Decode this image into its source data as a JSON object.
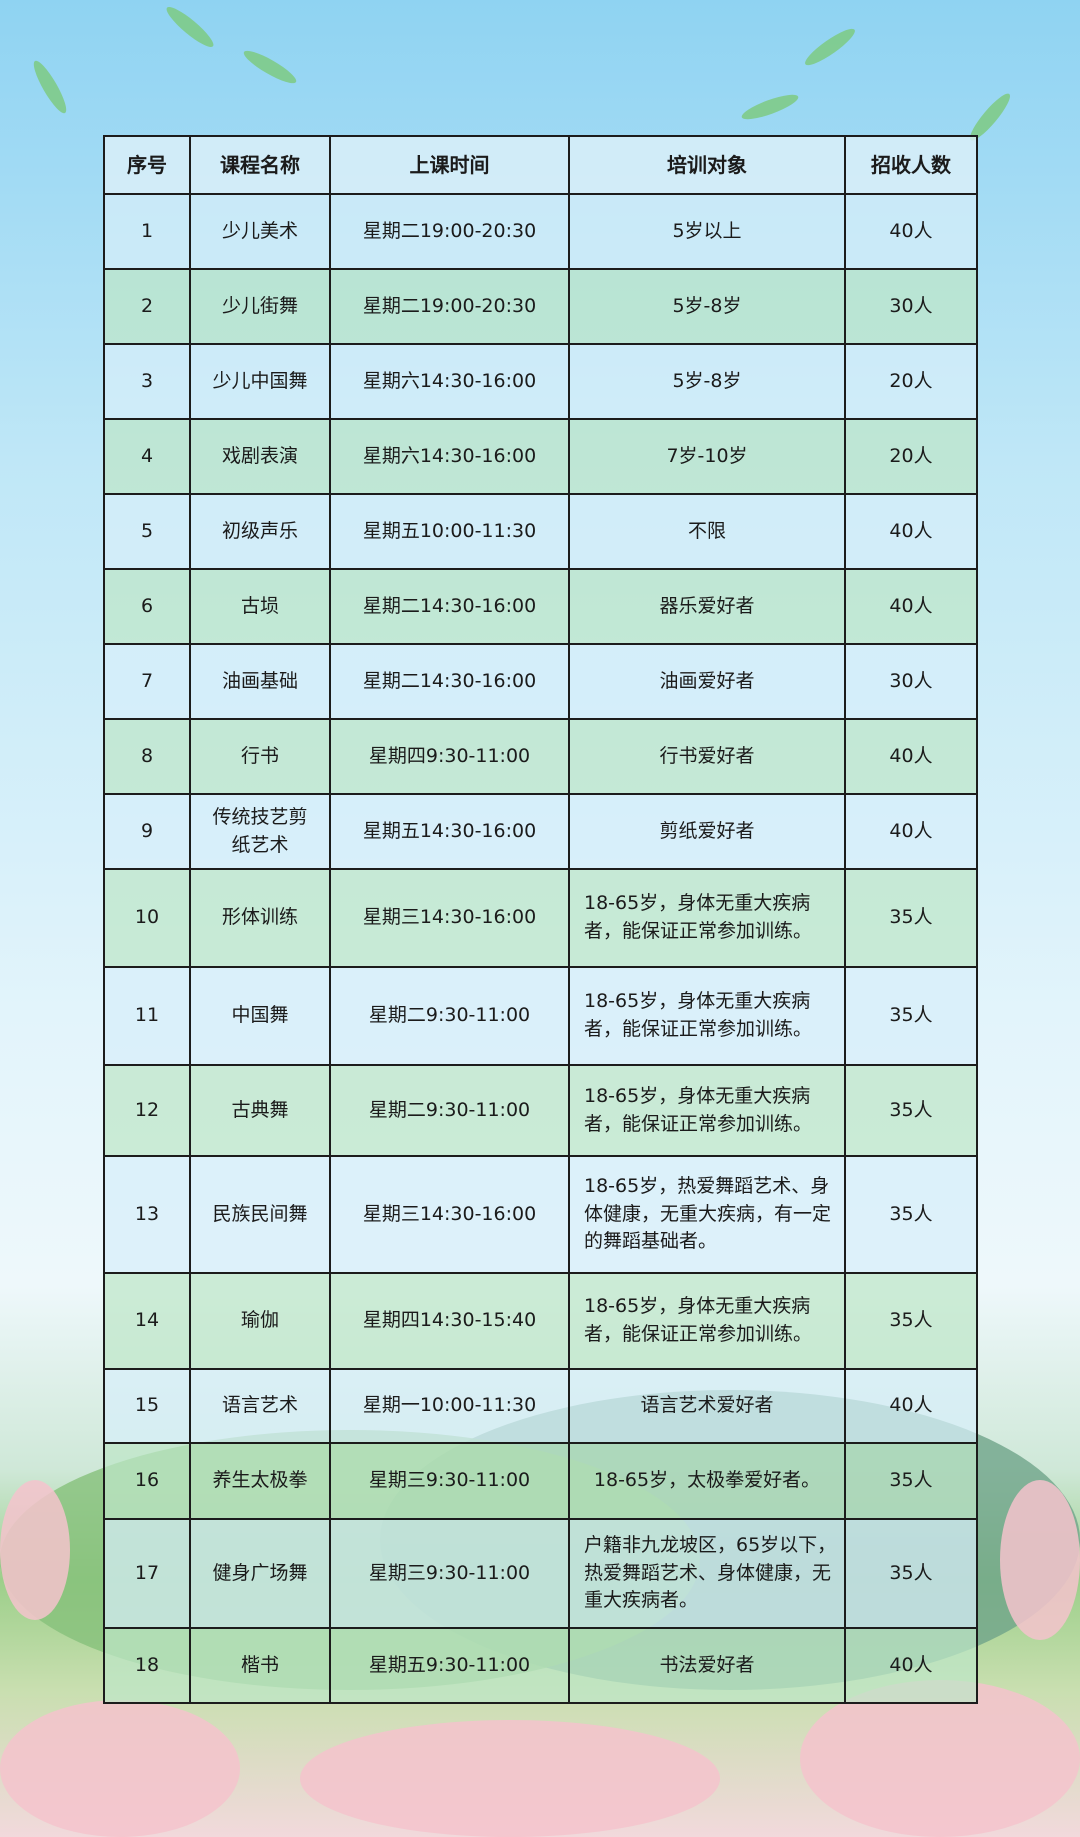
{
  "table": {
    "headers": [
      "序号",
      "课程名称",
      "上课时间",
      "培训对象",
      "招收人数"
    ],
    "rows": [
      {
        "no": "1",
        "name": "少儿美术",
        "time": "星期二19:00-20:30",
        "target": "5岁以上",
        "count": "40人"
      },
      {
        "no": "2",
        "name": "少儿街舞",
        "time": "星期二19:00-20:30",
        "target": "5岁-8岁",
        "count": "30人"
      },
      {
        "no": "3",
        "name": "少儿中国舞",
        "time": "星期六14:30-16:00",
        "target": "5岁-8岁",
        "count": "20人"
      },
      {
        "no": "4",
        "name": "戏剧表演",
        "time": "星期六14:30-16:00",
        "target": "7岁-10岁",
        "count": "20人"
      },
      {
        "no": "5",
        "name": "初级声乐",
        "time": "星期五10:00-11:30",
        "target": "不限",
        "count": "40人"
      },
      {
        "no": "6",
        "name": "古埙",
        "time": "星期二14:30-16:00",
        "target": "器乐爱好者",
        "count": "40人"
      },
      {
        "no": "7",
        "name": "油画基础",
        "time": "星期二14:30-16:00",
        "target": "油画爱好者",
        "count": "30人"
      },
      {
        "no": "8",
        "name": "行书",
        "time": "星期四9:30-11:00",
        "target": "行书爱好者",
        "count": "40人"
      },
      {
        "no": "9",
        "name": "传统技艺剪纸艺术",
        "time": "星期五14:30-16:00",
        "target": "剪纸爱好者",
        "count": "40人"
      },
      {
        "no": "10",
        "name": "形体训练",
        "time": "星期三14:30-16:00",
        "target": "18-65岁，身体无重大疾病者，能保证正常参加训练。",
        "count": "35人"
      },
      {
        "no": "11",
        "name": "中国舞",
        "time": "星期二9:30-11:00",
        "target": "18-65岁，身体无重大疾病者，能保证正常参加训练。",
        "count": "35人"
      },
      {
        "no": "12",
        "name": "古典舞",
        "time": "星期二9:30-11:00",
        "target": "18-65岁，身体无重大疾病者，能保证正常参加训练。",
        "count": "35人"
      },
      {
        "no": "13",
        "name": "民族民间舞",
        "time": "星期三14:30-16:00",
        "target": "18-65岁，热爱舞蹈艺术、身体健康，无重大疾病，有一定的舞蹈基础者。",
        "count": "35人"
      },
      {
        "no": "14",
        "name": "瑜伽",
        "time": "星期四14:30-15:40",
        "target": "18-65岁，身体无重大疾病者，能保证正常参加训练。",
        "count": "35人"
      },
      {
        "no": "15",
        "name": "语言艺术",
        "time": "星期一10:00-11:30",
        "target": "语言艺术爱好者",
        "count": "40人"
      },
      {
        "no": "16",
        "name": "养生太极拳",
        "time": "星期三9:30-11:00",
        "target": "18-65岁，太极拳爱好者。",
        "count": "35人"
      },
      {
        "no": "17",
        "name": "健身广场舞",
        "time": "星期三9:30-11:00",
        "target": "户籍非九龙坡区，65岁以下，热爱舞蹈艺术、身体健康，无重大疾病者。",
        "count": "35人"
      },
      {
        "no": "18",
        "name": "楷书",
        "time": "星期五9:30-11:00",
        "target": "书法爱好者",
        "count": "40人"
      }
    ]
  }
}
